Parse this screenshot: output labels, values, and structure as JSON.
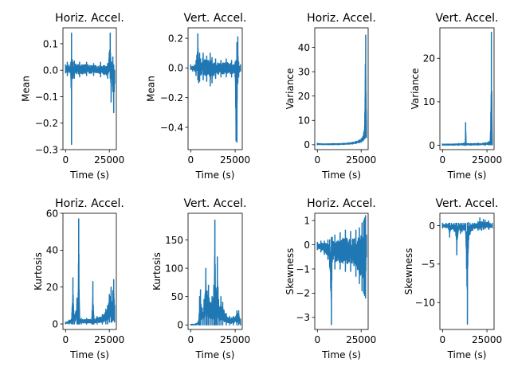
{
  "colors": {
    "series": "#1f77b4",
    "axes": "#000000"
  },
  "chart_data": [
    {
      "type": "line",
      "title": "Horiz. Accel.",
      "xlabel": "Time (s)",
      "ylabel": "Mean",
      "xlim": [
        -1500,
        29000
      ],
      "ylim": [
        -0.3,
        0.16
      ],
      "xticks": [
        0,
        25000
      ],
      "xtick_labels": [
        "0",
        "25000"
      ],
      "yticks": [
        0.1,
        0.0,
        -0.1,
        -0.2,
        -0.3
      ],
      "ytick_labels": [
        "0.1",
        "0.0",
        "−0.1",
        "−0.2",
        "−0.3"
      ],
      "envelope": {
        "x": [
          0,
          1000,
          2000,
          3000,
          3400,
          3600,
          3800,
          4200,
          5000,
          8000,
          12000,
          16000,
          20000,
          24000,
          25500,
          26000,
          26500,
          27000,
          27500,
          28000
        ],
        "hi": [
          0.02,
          0.03,
          0.02,
          0.03,
          0.14,
          0.01,
          0.04,
          0.03,
          0.035,
          0.03,
          0.03,
          0.025,
          0.03,
          0.025,
          0.14,
          0.02,
          0.03,
          0.05,
          0.02,
          0.0
        ],
        "lo": [
          -0.01,
          -0.02,
          -0.01,
          -0.02,
          -0.28,
          -0.02,
          -0.02,
          -0.03,
          -0.03,
          -0.025,
          -0.02,
          -0.02,
          -0.025,
          -0.03,
          -0.03,
          -0.12,
          -0.03,
          -0.08,
          -0.16,
          -0.05
        ]
      }
    },
    {
      "type": "line",
      "title": "Vert. Accel.",
      "xlabel": "Time (s)",
      "ylabel": "Mean",
      "xlim": [
        -1500,
        29000
      ],
      "ylim": [
        -0.55,
        0.27
      ],
      "xticks": [
        0,
        25000
      ],
      "xtick_labels": [
        "0",
        "25000"
      ],
      "yticks": [
        0.2,
        0.0,
        -0.2,
        -0.4
      ],
      "ytick_labels": [
        "0.2",
        "0.0",
        "−0.2",
        "−0.4"
      ],
      "envelope": {
        "x": [
          0,
          1000,
          2000,
          3000,
          4000,
          4500,
          5000,
          7000,
          9000,
          11000,
          12000,
          14000,
          17000,
          20000,
          23000,
          25000,
          25500,
          26000,
          26500,
          27000,
          28000
        ],
        "hi": [
          0.02,
          0.01,
          0.02,
          0.05,
          0.23,
          0.06,
          0.1,
          0.1,
          0.08,
          0.1,
          0.07,
          0.06,
          0.05,
          0.06,
          0.05,
          0.04,
          0.05,
          0.17,
          0.21,
          0.04,
          0.02
        ],
        "lo": [
          -0.01,
          -0.02,
          -0.02,
          -0.05,
          -0.08,
          -0.1,
          -0.09,
          -0.08,
          -0.09,
          -0.12,
          -0.1,
          -0.07,
          -0.06,
          -0.06,
          -0.06,
          -0.06,
          -0.49,
          -0.5,
          -0.1,
          -0.06,
          -0.02
        ]
      }
    },
    {
      "type": "line",
      "title": "Horiz. Accel.",
      "xlabel": "Time (s)",
      "ylabel": "Variance",
      "xlim": [
        -1500,
        29000
      ],
      "ylim": [
        -2,
        48
      ],
      "xticks": [
        0,
        25000
      ],
      "xtick_labels": [
        "0",
        "25000"
      ],
      "yticks": [
        40,
        30,
        20,
        10,
        0
      ],
      "ytick_labels": [
        "40",
        "30",
        "20",
        "10",
        "0"
      ],
      "envelope": {
        "x": [
          0,
          3000,
          6000,
          9000,
          12000,
          15000,
          18000,
          20000,
          22000,
          24000,
          25000,
          26000,
          26500,
          27000,
          27400,
          27600,
          28000
        ],
        "hi": [
          0.6,
          0.4,
          0.4,
          0.5,
          0.5,
          0.6,
          0.8,
          1.0,
          1.4,
          2.0,
          2.5,
          3.5,
          5,
          8,
          33,
          45,
          10
        ],
        "lo": [
          0.0,
          0.0,
          0.0,
          0.0,
          0.0,
          0.1,
          0.2,
          0.3,
          0.5,
          0.8,
          1.0,
          1.5,
          2.0,
          2.5,
          3,
          4,
          3
        ]
      }
    },
    {
      "type": "line",
      "title": "Vert. Accel.",
      "xlabel": "Time (s)",
      "ylabel": "Variance",
      "xlim": [
        -1500,
        29000
      ],
      "ylim": [
        -1,
        27
      ],
      "xticks": [
        0,
        25000
      ],
      "xtick_labels": [
        "0",
        "25000"
      ],
      "yticks": [
        20,
        10,
        0
      ],
      "ytick_labels": [
        "20",
        "10",
        "0"
      ],
      "envelope": {
        "x": [
          0,
          3000,
          6000,
          9000,
          12000,
          12800,
          13000,
          13300,
          16000,
          20000,
          24000,
          26000,
          26800,
          27200,
          27500,
          28000
        ],
        "hi": [
          0.3,
          0.3,
          0.3,
          0.4,
          0.5,
          0.6,
          5.2,
          0.5,
          0.4,
          0.5,
          0.6,
          0.8,
          1.0,
          7.5,
          26,
          1.0
        ],
        "lo": [
          0.0,
          0.0,
          0.0,
          0.0,
          0.0,
          0.0,
          0.1,
          0.0,
          0.0,
          0.0,
          0.0,
          0.1,
          0.1,
          0.2,
          0.2,
          0.1
        ]
      }
    },
    {
      "type": "line",
      "title": "Horiz. Accel.",
      "xlabel": "Time (s)",
      "ylabel": "Kurtosis",
      "xlim": [
        -1500,
        29000
      ],
      "ylim": [
        -3,
        60
      ],
      "xticks": [
        0,
        25000
      ],
      "xtick_labels": [
        "0",
        "25000"
      ],
      "yticks": [
        60,
        40,
        20,
        0
      ],
      "ytick_labels": [
        "60",
        "40",
        "20",
        "0"
      ],
      "envelope": {
        "x": [
          0,
          2000,
          3500,
          4200,
          5000,
          6500,
          7000,
          7500,
          8000,
          9000,
          12000,
          15000,
          15600,
          16200,
          18000,
          21000,
          23000,
          24000,
          25000,
          26000,
          26500,
          27000,
          27500,
          28000
        ],
        "hi": [
          1,
          2,
          3,
          25,
          3,
          14,
          5,
          57,
          4,
          3,
          3,
          3,
          23,
          3,
          4,
          5,
          8,
          10,
          16,
          20,
          12,
          18,
          24,
          10
        ],
        "lo": [
          0,
          0,
          0,
          0,
          0,
          0,
          0,
          0,
          0,
          0,
          0,
          0,
          0,
          0,
          0,
          0,
          0,
          0,
          1,
          1,
          1,
          2,
          2,
          1
        ]
      }
    },
    {
      "type": "line",
      "title": "Vert. Accel.",
      "xlabel": "Time (s)",
      "ylabel": "Kurtosis",
      "xlim": [
        -1500,
        29000
      ],
      "ylim": [
        -8,
        197
      ],
      "xticks": [
        0,
        25000
      ],
      "xtick_labels": [
        "0",
        "25000"
      ],
      "yticks": [
        150,
        100,
        50,
        0
      ],
      "ytick_labels": [
        "150",
        "100",
        "50",
        "0"
      ],
      "envelope": {
        "x": [
          0,
          3000,
          4500,
          5000,
          5500,
          6500,
          7500,
          8500,
          9200,
          10000,
          11000,
          12000,
          13000,
          13600,
          14300,
          15000,
          16000,
          17000,
          18000,
          20000,
          22000,
          24000,
          26000,
          27000,
          28000
        ],
        "hi": [
          1,
          2,
          8,
          50,
          62,
          30,
          45,
          100,
          60,
          70,
          40,
          50,
          70,
          185,
          40,
          120,
          30,
          50,
          40,
          20,
          15,
          15,
          25,
          25,
          10
        ],
        "lo": [
          0,
          0,
          0,
          0,
          0,
          0,
          0,
          0,
          0,
          0,
          0,
          0,
          0,
          0,
          0,
          0,
          0,
          0,
          0,
          0,
          0,
          0,
          0,
          0,
          0
        ]
      }
    },
    {
      "type": "line",
      "title": "Horiz. Accel.",
      "xlabel": "Time (s)",
      "ylabel": "Skewness",
      "xlim": [
        -1500,
        29000
      ],
      "ylim": [
        -3.5,
        1.3
      ],
      "xticks": [
        0,
        25000
      ],
      "xtick_labels": [
        "0",
        "25000"
      ],
      "yticks": [
        1,
        0,
        -1,
        -2,
        -3
      ],
      "ytick_labels": [
        "1",
        "0",
        "−1",
        "−2",
        "−3"
      ],
      "envelope": {
        "x": [
          0,
          2000,
          4000,
          6000,
          7000,
          8000,
          8500,
          10000,
          13000,
          16000,
          19000,
          22000,
          24000,
          25500,
          26500,
          27000,
          27500,
          28000
        ],
        "hi": [
          0.1,
          0.15,
          0.15,
          0.2,
          0.2,
          0.3,
          0.3,
          0.4,
          0.5,
          0.6,
          0.55,
          0.6,
          0.7,
          0.9,
          1.0,
          1.1,
          1.2,
          0.4
        ],
        "lo": [
          -0.2,
          -0.3,
          -0.4,
          -0.6,
          -0.9,
          -3.3,
          -0.7,
          -1.0,
          -1.0,
          -1.1,
          -1.1,
          -1.3,
          -1.6,
          -1.9,
          -2.0,
          -2.1,
          -2.2,
          -0.5
        ]
      }
    },
    {
      "type": "line",
      "title": "Vert. Accel.",
      "xlabel": "Time (s)",
      "ylabel": "Skewness",
      "xlim": [
        -1500,
        29000
      ],
      "ylim": [
        -13.5,
        1.6
      ],
      "xticks": [
        0,
        25000
      ],
      "xtick_labels": [
        "0",
        "25000"
      ],
      "yticks": [
        0,
        -5,
        -10
      ],
      "ytick_labels": [
        "0",
        "−5",
        "−10"
      ],
      "envelope": {
        "x": [
          0,
          2000,
          3500,
          4000,
          5000,
          6500,
          7500,
          8000,
          9000,
          10000,
          11000,
          12000,
          13000,
          14000,
          14500,
          15500,
          17000,
          18000,
          20000,
          21000,
          22000,
          23000,
          24000,
          26000,
          28000
        ],
        "hi": [
          0.3,
          0.3,
          0.3,
          0.3,
          0.3,
          0.3,
          0.3,
          0.3,
          0.3,
          0.3,
          0.3,
          0.3,
          0.3,
          0.3,
          0.4,
          0.3,
          0.3,
          0.3,
          0.5,
          1.0,
          0.5,
          0.8,
          0.7,
          0.6,
          0.3
        ],
        "lo": [
          -0.3,
          -0.3,
          -0.5,
          -1.5,
          -0.5,
          -0.7,
          -1.3,
          -3.8,
          -0.5,
          -1.0,
          -0.8,
          -0.6,
          -0.8,
          -12.8,
          -3.0,
          -1.1,
          -0.6,
          -0.4,
          -0.6,
          -0.5,
          -0.6,
          -0.5,
          -0.4,
          -0.5,
          -0.3
        ]
      }
    }
  ]
}
